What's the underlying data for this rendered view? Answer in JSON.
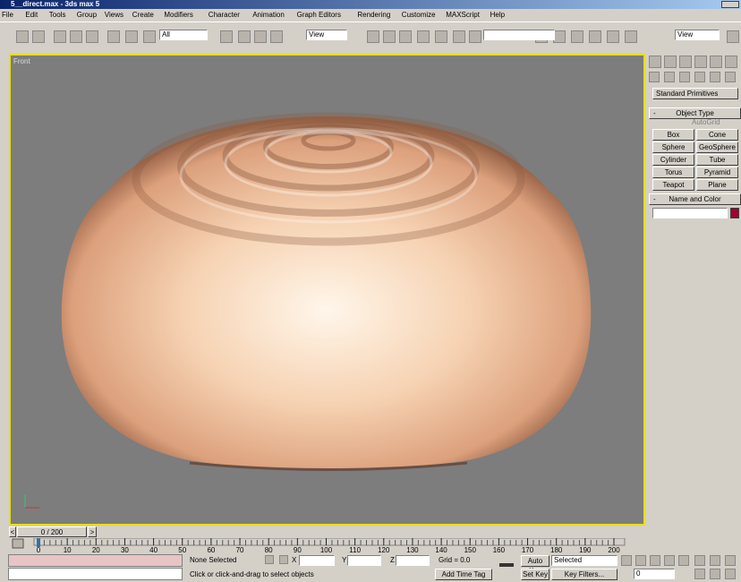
{
  "title_bar": {
    "title": "5__direct.max - 3ds max 5"
  },
  "menu": [
    "File",
    "Edit",
    "Tools",
    "Group",
    "Views",
    "Create",
    "Modifiers",
    "Character",
    "Animation",
    "Graph Editors",
    "Rendering",
    "Customize",
    "MAXScript",
    "Help"
  ],
  "toolbar": {
    "selection_filter": "All",
    "reference_coord": "View",
    "render_type": "View"
  },
  "viewport": {
    "label": "Front"
  },
  "command_panel": {
    "dropdown": "Standard Primitives",
    "object_type": {
      "collapse": "-",
      "title": "Object Type",
      "autogrid": "AutoGrid",
      "buttons": [
        "Box",
        "Cone",
        "Sphere",
        "GeoSphere",
        "Cylinder",
        "Tube",
        "Torus",
        "Pyramid",
        "Teapot",
        "Plane"
      ]
    },
    "name_and_color": {
      "collapse": "-",
      "title": "Name and Color"
    }
  },
  "timeline": {
    "prev": "<",
    "frame": "0 / 200",
    "next": ">",
    "ticks": [
      0,
      10,
      20,
      30,
      40,
      50,
      60,
      70,
      80,
      90,
      100,
      110,
      120,
      130,
      140,
      150,
      160,
      170,
      180,
      190,
      200
    ]
  },
  "status": {
    "selection": "None Selected",
    "x": "X",
    "y": "Y",
    "z": "Z",
    "grid": "Grid = 0.0",
    "auto_key": "Auto Key",
    "key_mode": "Selected",
    "set_key": "Set Key",
    "key_filters": "Key Filters...",
    "prompt": "Click or click-and-drag to select objects",
    "add_time_tag": "Add Time Tag",
    "current_frame": "0"
  }
}
